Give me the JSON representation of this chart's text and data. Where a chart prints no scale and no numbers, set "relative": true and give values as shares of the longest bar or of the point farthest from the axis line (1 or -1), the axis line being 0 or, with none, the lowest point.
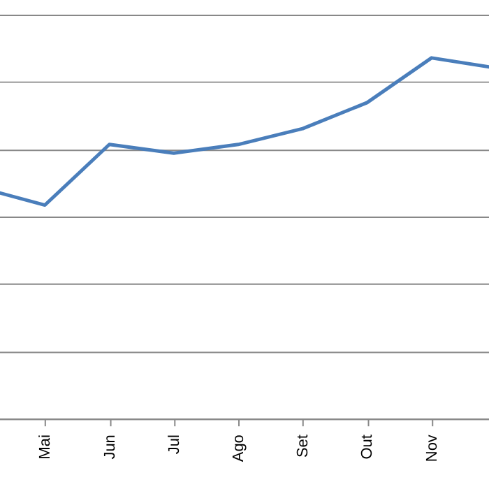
{
  "chart_data": {
    "type": "line",
    "relative": true,
    "categories": [
      null,
      "Mai",
      "Jun",
      "Jul",
      "Ago",
      "Set",
      "Out",
      "Nov",
      null
    ],
    "series": [
      {
        "color": "#4a7ebb",
        "values": [
          0.64,
          0.592,
          0.76,
          0.736,
          0.76,
          0.804,
          0.876,
          1,
          0.972
        ]
      }
    ],
    "grid": "y",
    "legend": false,
    "marker": "none",
    "line_style": "solid"
  }
}
